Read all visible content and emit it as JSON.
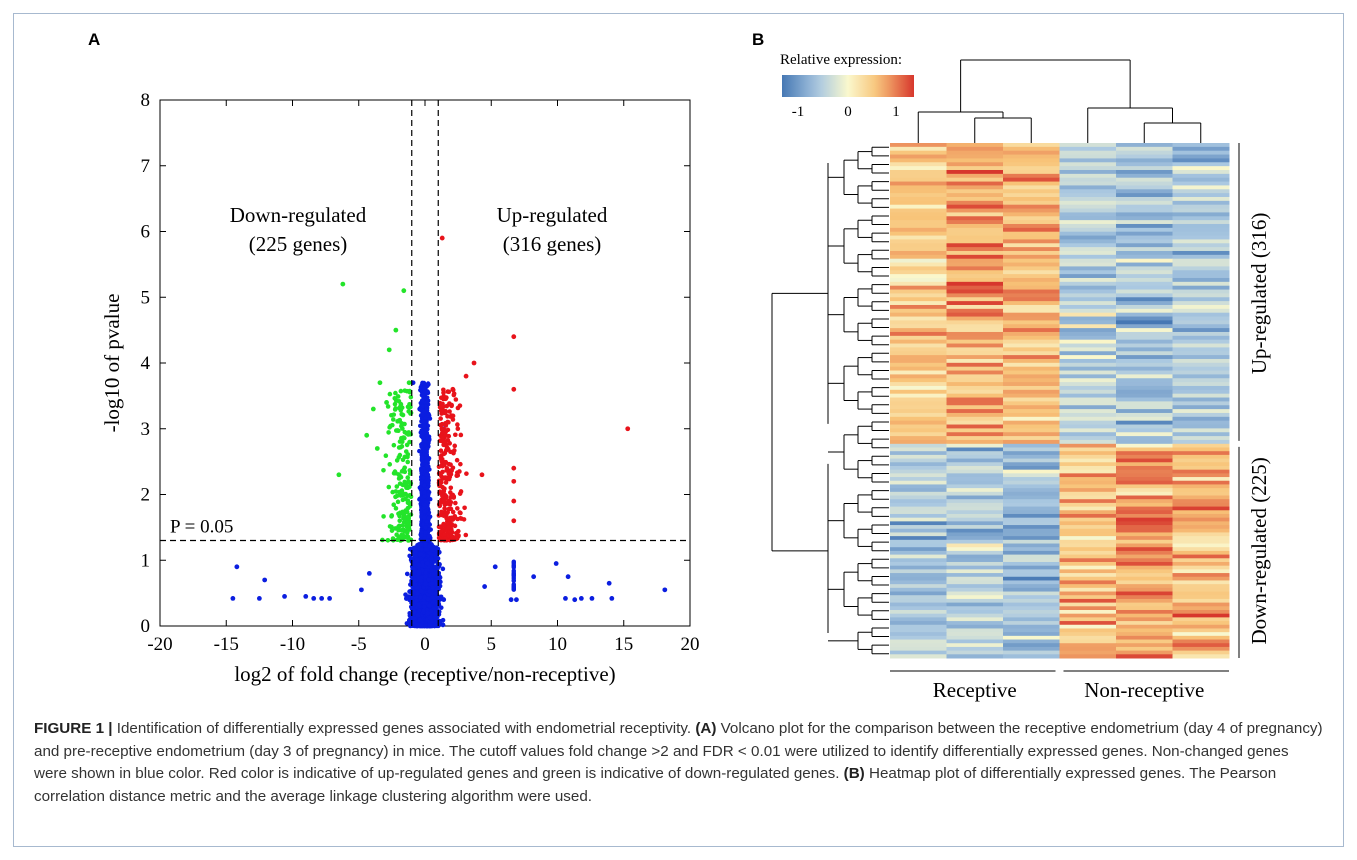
{
  "panels": {
    "a": "A",
    "b": "B"
  },
  "chart_data": [
    {
      "type": "scatter",
      "panel": "A",
      "xlabel": "log2 of fold change (receptive/non-receptive)",
      "ylabel": "-log10 of pvalue",
      "xlim": [
        -20,
        20
      ],
      "ylim": [
        0,
        8
      ],
      "xticks": [
        -20,
        -15,
        -10,
        -5,
        0,
        5,
        10,
        15,
        20
      ],
      "yticks": [
        0,
        1,
        2,
        3,
        4,
        5,
        6,
        7,
        8
      ],
      "fold_change_cutoffs": [
        -1,
        1
      ],
      "pvalue_line": 1.3,
      "pvalue_label": "P = 0.05",
      "colors": {
        "not_changed": "#0b1ee0",
        "up": "#e8131b",
        "down": "#23e42a"
      },
      "annotations": [
        {
          "text": "Down-regulated",
          "line2": "(225 genes)"
        },
        {
          "text": "Up-regulated",
          "line2": "(316 genes)"
        }
      ],
      "highlight_points": {
        "down": [
          [
            -6.2,
            5.2
          ],
          [
            -1.6,
            5.1
          ],
          [
            -2.2,
            4.5
          ],
          [
            -2.7,
            4.2
          ],
          [
            -3.4,
            3.7
          ],
          [
            -1.2,
            3.7
          ],
          [
            -3.9,
            3.3
          ],
          [
            -4.4,
            2.9
          ],
          [
            -6.5,
            2.3
          ],
          [
            -3.6,
            2.7
          ],
          [
            -2.9,
            3.4
          ]
        ],
        "up": [
          [
            1.3,
            5.9
          ],
          [
            6.7,
            4.4
          ],
          [
            6.7,
            3.6
          ],
          [
            3.7,
            4.0
          ],
          [
            3.1,
            3.8
          ],
          [
            15.3,
            3.0
          ],
          [
            6.7,
            2.4
          ],
          [
            6.7,
            2.2
          ],
          [
            6.7,
            1.9
          ],
          [
            6.7,
            1.6
          ],
          [
            2.1,
            3.6
          ],
          [
            4.3,
            2.3
          ]
        ],
        "not_changed": [
          [
            -14.2,
            0.9
          ],
          [
            -12.1,
            0.7
          ],
          [
            -10.6,
            0.45
          ],
          [
            -9.0,
            0.45
          ],
          [
            -14.5,
            0.42
          ],
          [
            -12.5,
            0.42
          ],
          [
            -8.4,
            0.42
          ],
          [
            -7.8,
            0.42
          ],
          [
            -7.2,
            0.42
          ],
          [
            -4.2,
            0.8
          ],
          [
            -4.8,
            0.55
          ],
          [
            -0.9,
            3.7
          ],
          [
            -0.4,
            3.3
          ],
          [
            0.3,
            3.2
          ],
          [
            1.4,
            3.0
          ],
          [
            8.2,
            0.75
          ],
          [
            9.9,
            0.95
          ],
          [
            10.8,
            0.75
          ],
          [
            11.3,
            0.4
          ],
          [
            10.6,
            0.42
          ],
          [
            11.8,
            0.42
          ],
          [
            12.6,
            0.42
          ],
          [
            13.9,
            0.65
          ],
          [
            14.1,
            0.42
          ],
          [
            18.1,
            0.55
          ],
          [
            6.5,
            0.4
          ],
          [
            6.9,
            0.4
          ],
          [
            4.5,
            0.6
          ],
          [
            5.3,
            0.9
          ]
        ]
      }
    },
    {
      "type": "heatmap",
      "panel": "B",
      "legend_title": "Relative expression:",
      "colorbar_ticks": [
        "-1",
        "0",
        "1"
      ],
      "colorbar_range": [
        -1.2,
        1.2
      ],
      "columns": [
        "Receptive 1",
        "Receptive 2",
        "Receptive 3",
        "Non-receptive 1",
        "Non-receptive 2",
        "Non-receptive 3"
      ],
      "group_labels": [
        "Receptive",
        "Non-receptive"
      ],
      "row_groups": [
        {
          "label": "Up-regulated (316)",
          "genes": 316
        },
        {
          "label": "Down-regulated (225)",
          "genes": 225
        }
      ],
      "mean_expression": {
        "up_regulated": [
          0.45,
          0.65,
          0.6,
          -0.4,
          -0.55,
          -0.5
        ],
        "down_regulated": [
          -0.5,
          -0.45,
          -0.55,
          0.55,
          0.7,
          0.6
        ]
      }
    }
  ],
  "caption": {
    "label": "FIGURE 1 |",
    "text1": " Identification of differentially expressed genes associated with endometrial receptivity. ",
    "tagA": "(A)",
    "text2": " Volcano plot for the comparison between the receptive endometrium (day 4 of pregnancy) and pre-receptive endometrium (day 3 of pregnancy) in mice. The cutoff values fold change >2 and FDR < 0.01 were utilized to identify differentially expressed genes. Non-changed genes were shown in blue color. Red color is indicative of up-regulated genes and green is indicative of down-regulated genes. ",
    "tagB": "(B)",
    "text3": " Heatmap plot of differentially expressed genes. The Pearson correlation distance metric and the average linkage clustering algorithm were used."
  }
}
